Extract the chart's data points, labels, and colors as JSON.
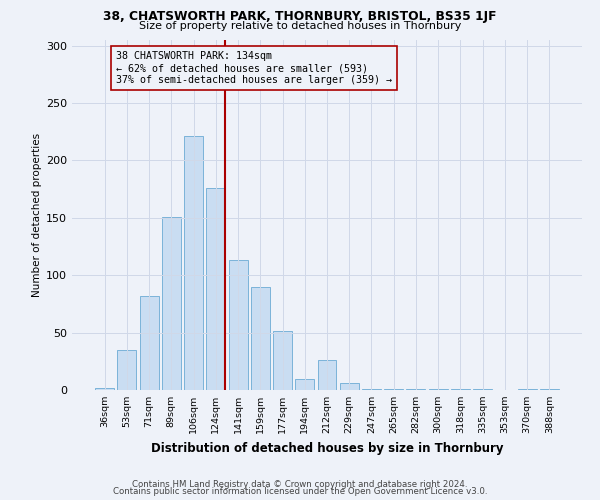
{
  "title1": "38, CHATSWORTH PARK, THORNBURY, BRISTOL, BS35 1JF",
  "title2": "Size of property relative to detached houses in Thornbury",
  "xlabel": "Distribution of detached houses by size in Thornbury",
  "ylabel": "Number of detached properties",
  "bar_labels": [
    "36sqm",
    "53sqm",
    "71sqm",
    "89sqm",
    "106sqm",
    "124sqm",
    "141sqm",
    "159sqm",
    "177sqm",
    "194sqm",
    "212sqm",
    "229sqm",
    "247sqm",
    "265sqm",
    "282sqm",
    "300sqm",
    "318sqm",
    "335sqm",
    "353sqm",
    "370sqm",
    "388sqm"
  ],
  "bar_values": [
    2,
    35,
    82,
    151,
    221,
    176,
    113,
    90,
    51,
    10,
    26,
    6,
    1,
    1,
    1,
    1,
    1,
    1,
    0,
    1,
    1
  ],
  "bar_color": "#c9ddf2",
  "bar_edge_color": "#7ab3d9",
  "vline_color": "#aa0000",
  "annotation_box_edge": "#aa0000",
  "ylim": [
    0,
    305
  ],
  "yticks": [
    0,
    50,
    100,
    150,
    200,
    250,
    300
  ],
  "footer1": "Contains HM Land Registry data © Crown copyright and database right 2024.",
  "footer2": "Contains public sector information licensed under the Open Government Licence v3.0.",
  "bg_color": "#eef2f9",
  "grid_color": "#d0d8e8",
  "property_label": "38 CHATSWORTH PARK: 134sqm",
  "annotation_line1": "← 62% of detached houses are smaller (593)",
  "annotation_line2": "37% of semi-detached houses are larger (359) →",
  "vline_x_index": 5.5
}
